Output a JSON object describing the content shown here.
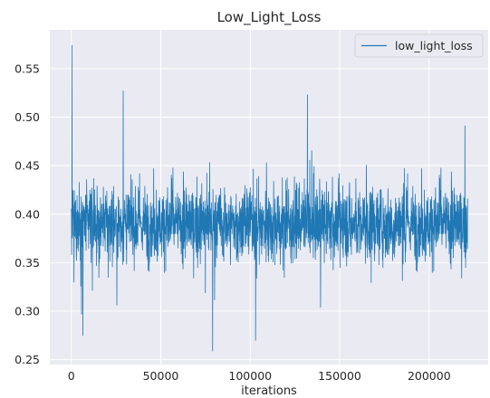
{
  "chart_data": {
    "type": "line",
    "title": "Low_Light_Loss",
    "xlabel": "iterations",
    "ylabel": "",
    "xlim": [
      -12000,
      233000
    ],
    "ylim": [
      0.245,
      0.59
    ],
    "xticks": [
      0,
      50000,
      100000,
      150000,
      200000
    ],
    "xtick_labels": [
      "0",
      "50000",
      "100000",
      "150000",
      "200000"
    ],
    "yticks": [
      0.25,
      0.3,
      0.35,
      0.4,
      0.45,
      0.5,
      0.55
    ],
    "ytick_labels": [
      "0.25",
      "0.30",
      "0.35",
      "0.40",
      "0.45",
      "0.50",
      "0.55"
    ],
    "grid": true,
    "legend": {
      "placement": "top-right"
    },
    "series": [
      {
        "name": "low_light_loss",
        "color": "#1f77b4",
        "x_range": [
          0,
          221500
        ],
        "mean": 0.39,
        "typical_band": [
          0.33,
          0.45
        ],
        "notable_points": [
          {
            "x": 400,
            "y": 0.574
          },
          {
            "x": 1500,
            "y": 0.33
          },
          {
            "x": 6500,
            "y": 0.275
          },
          {
            "x": 29000,
            "y": 0.527
          },
          {
            "x": 79000,
            "y": 0.259
          },
          {
            "x": 103000,
            "y": 0.27
          },
          {
            "x": 132000,
            "y": 0.523
          },
          {
            "x": 220000,
            "y": 0.491
          }
        ]
      }
    ],
    "background_color": "#eaeaf2",
    "grid_color": "#ffffff"
  }
}
